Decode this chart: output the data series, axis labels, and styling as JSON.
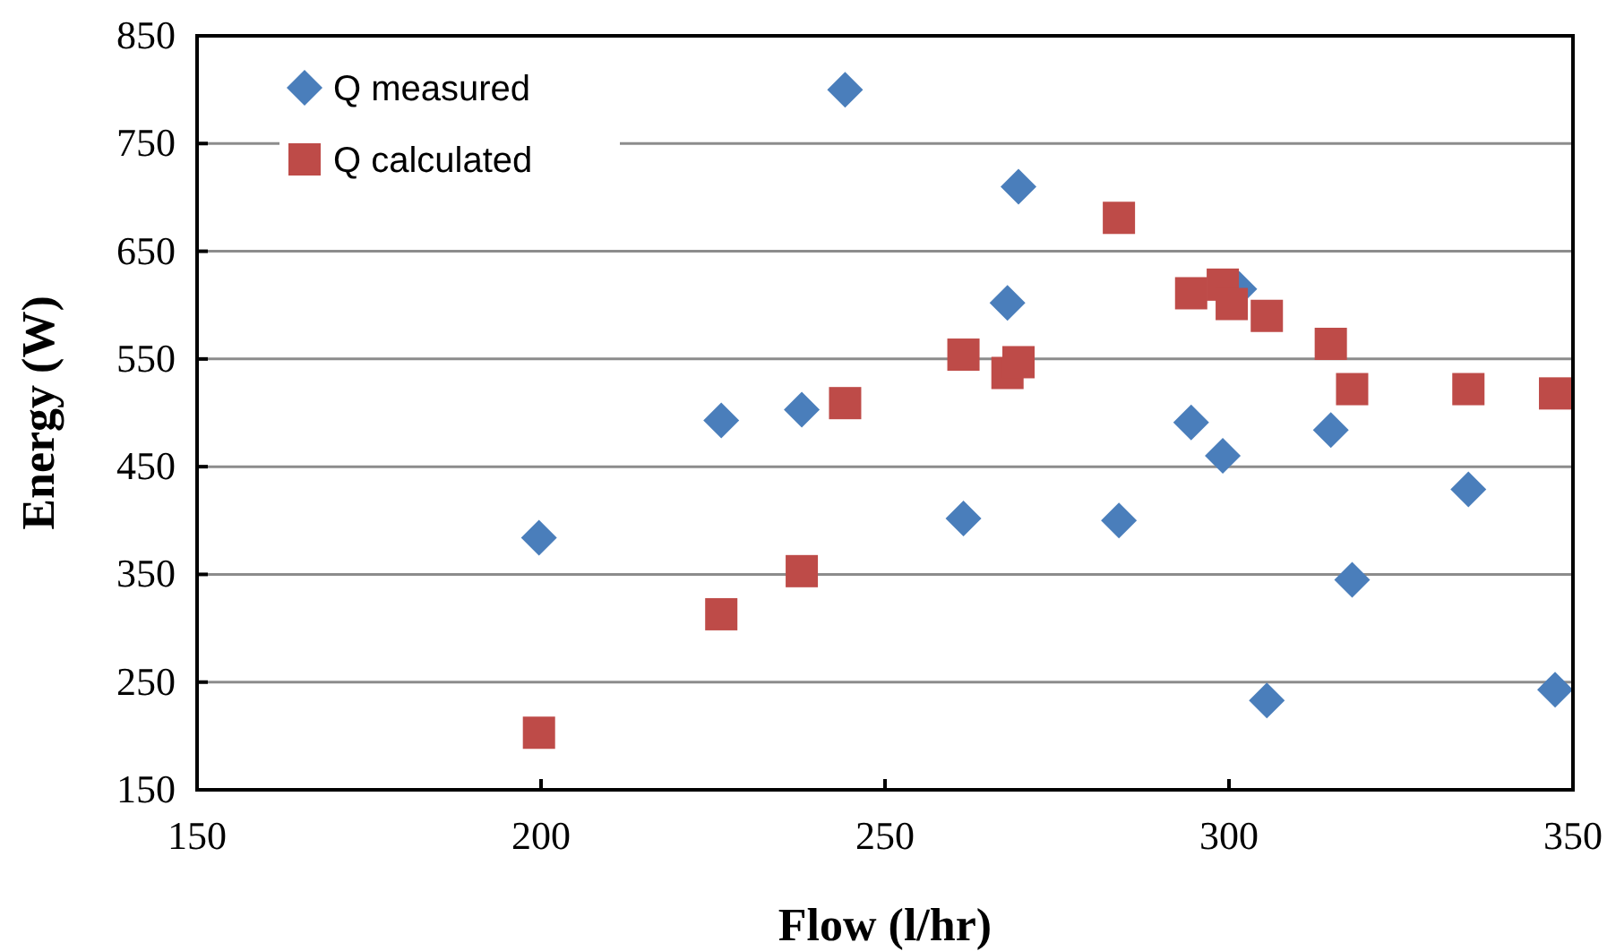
{
  "chart_data": {
    "type": "scatter",
    "xlabel": "Flow  (l/hr)",
    "ylabel": "Energy  (W)",
    "xlim": [
      150,
      350
    ],
    "xticks": [
      150,
      200,
      250,
      300,
      350
    ],
    "ylim": [
      150,
      850
    ],
    "yticks": [
      150,
      250,
      350,
      450,
      550,
      650,
      750,
      850
    ],
    "grid": "y",
    "legend": "top left",
    "series": [
      {
        "name": "Q measured",
        "color": "#4a7ebb",
        "marker": "diamond",
        "x": [
          199.7,
          226.2,
          237.9,
          244.2,
          261.4,
          267.8,
          269.4,
          284,
          294.5,
          299.1,
          301.5,
          305.5,
          314.8,
          317.9,
          334.8,
          347.4
        ],
        "values": [
          384,
          493,
          503,
          800,
          402,
          602,
          710,
          400,
          491,
          460,
          615,
          233,
          484,
          345,
          429,
          243
        ]
      },
      {
        "name": "Q calculated",
        "color": "#be4b48",
        "marker": "square",
        "x": [
          199.7,
          226.2,
          237.9,
          244.2,
          261.4,
          267.8,
          269.4,
          284,
          294.5,
          299.1,
          300.4,
          305.5,
          314.8,
          317.9,
          334.8,
          347.4
        ],
        "values": [
          203,
          313,
          353,
          509,
          554,
          537,
          547,
          681,
          611,
          619,
          601,
          590,
          564,
          522,
          522,
          518
        ]
      }
    ]
  }
}
